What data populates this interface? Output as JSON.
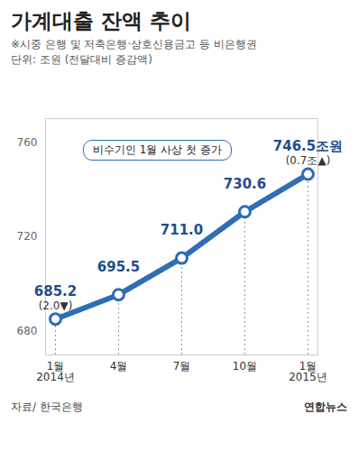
{
  "chart_data": {
    "type": "line",
    "title": "가계대출 잔액 추이",
    "subtitle": "※시중 은행 및 저축은행·상호신용금고 등 비은행권",
    "unit": "단위: 조원 (전달대비 증감액)",
    "annotation": "비수기인 1월 사상 첫 증가",
    "source": "자료/ 한국은행",
    "credit": "연합뉴스",
    "categories": [
      "1월\n2014년",
      "4월",
      "7월",
      "10월",
      "1월\n2015년"
    ],
    "values": [
      685.2,
      695.5,
      711.0,
      730.6,
      746.5
    ],
    "value_labels": [
      "685.2",
      "695.5",
      "711.0",
      "730.6",
      "746.5조원"
    ],
    "change_labels": [
      "(2.0▼)",
      null,
      null,
      null,
      "(0.7조▲)"
    ],
    "color": "#2f6db5",
    "marker": "circle",
    "data_labels": true,
    "grid": false,
    "ylim": [
      670,
      770
    ],
    "yticks": [
      680,
      720,
      760
    ]
  }
}
